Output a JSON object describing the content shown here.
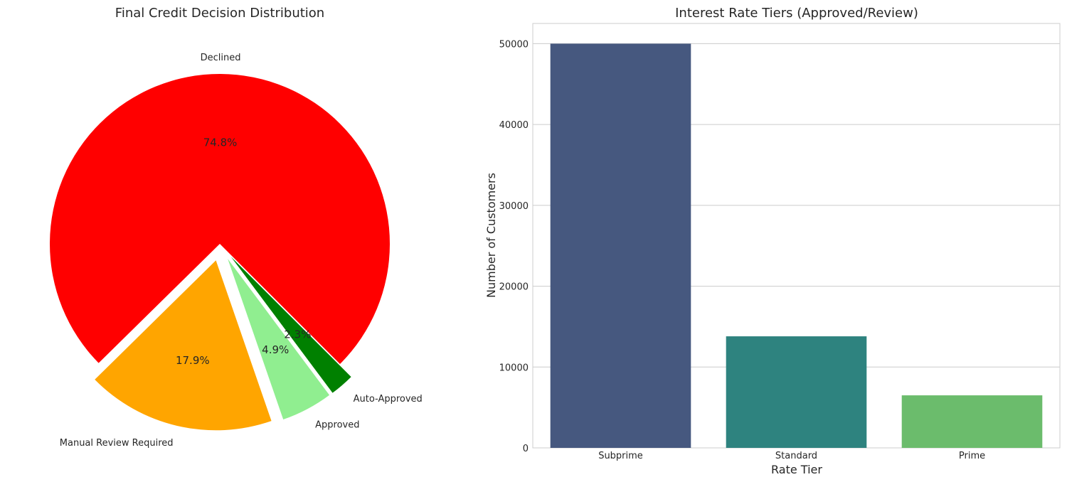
{
  "chart_data": [
    {
      "type": "pie",
      "title": "Final Credit Decision Distribution",
      "slices": [
        {
          "label": "Declined",
          "percent": 74.8,
          "pct_text": "74.8%",
          "color": "#ff0000",
          "exploded": false
        },
        {
          "label": "Manual Review Required",
          "percent": 17.9,
          "pct_text": "17.9%",
          "color": "#ffa500",
          "exploded": true
        },
        {
          "label": "Approved",
          "percent": 4.9,
          "pct_text": "4.9%",
          "color": "#90ee90",
          "exploded": true
        },
        {
          "label": "Auto-Approved",
          "percent": 2.3,
          "pct_text": "2.3%",
          "color": "#008000",
          "exploded": true
        }
      ]
    },
    {
      "type": "bar",
      "title": "Interest Rate Tiers (Approved/Review)",
      "xlabel": "Rate Tier",
      "ylabel": "Number of Customers",
      "categories": [
        "Subprime",
        "Standard",
        "Prime"
      ],
      "values": [
        50000,
        13800,
        6500
      ],
      "colors": [
        "#46587f",
        "#2e837f",
        "#6bbc6c"
      ],
      "ylim": [
        0,
        52500
      ],
      "yticks": [
        0,
        10000,
        20000,
        30000,
        40000,
        50000
      ],
      "grid": "horizontal"
    }
  ]
}
